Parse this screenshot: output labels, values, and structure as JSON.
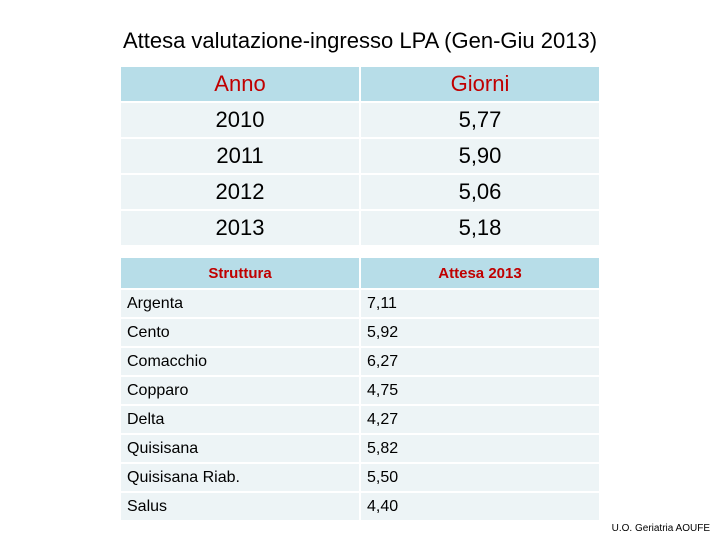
{
  "title": "Attesa valutazione-ingresso LPA (Gen-Giu 2013)",
  "table1": {
    "headers": [
      "Anno",
      "Giorni"
    ],
    "rows": [
      [
        "2010",
        "5,77"
      ],
      [
        "2011",
        "5,90"
      ],
      [
        "2012",
        "5,06"
      ],
      [
        "2013",
        "5,18"
      ]
    ]
  },
  "table2": {
    "headers": [
      "Struttura",
      "Attesa 2013"
    ],
    "rows": [
      [
        "Argenta",
        "7,11"
      ],
      [
        "Cento",
        "5,92"
      ],
      [
        "Comacchio",
        "6,27"
      ],
      [
        "Copparo",
        "4,75"
      ],
      [
        "Delta",
        "4,27"
      ],
      [
        "Quisisana",
        "5,82"
      ],
      [
        "Quisisana Riab.",
        "5,50"
      ],
      [
        "Salus",
        "4,40"
      ]
    ]
  },
  "footer": "U.O. Geriatria AOUFE",
  "colors": {
    "header_bg": "#b7dde8",
    "header_text": "#c00000",
    "row_bg": "#edf4f6"
  }
}
